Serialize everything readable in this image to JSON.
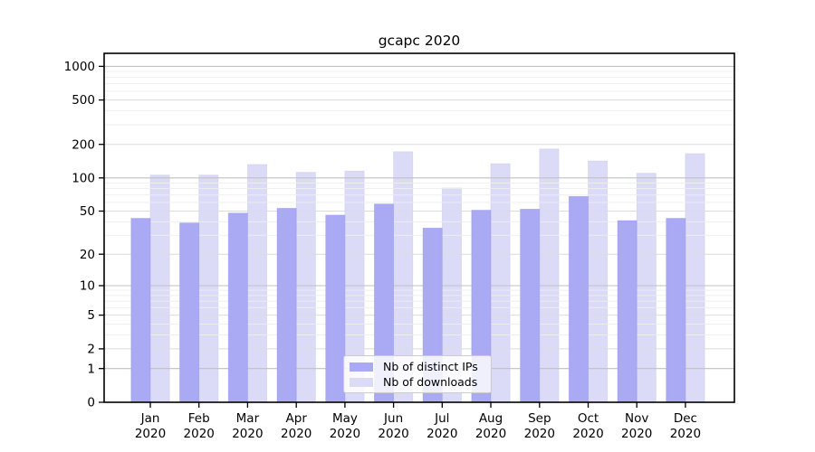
{
  "title": "gcapc 2020",
  "chart_data": {
    "type": "bar",
    "title": "gcapc 2020",
    "categories": [
      "Jan",
      "Feb",
      "Mar",
      "Apr",
      "May",
      "Jun",
      "Jul",
      "Aug",
      "Sep",
      "Oct",
      "Nov",
      "Dec"
    ],
    "category_year": "2020",
    "series": [
      {
        "name": "Nb of distinct IPs",
        "color": "#a9a9f4",
        "values": [
          43,
          39,
          48,
          53,
          46,
          58,
          35,
          51,
          52,
          68,
          41,
          43
        ]
      },
      {
        "name": "Nb of downloads",
        "color": "#dbdbf8",
        "values": [
          106,
          106,
          132,
          112,
          115,
          172,
          81,
          134,
          182,
          142,
          110,
          165
        ]
      }
    ],
    "y_axis": {
      "scale": "log10(1+value)",
      "ticks": [
        0,
        1,
        2,
        5,
        10,
        20,
        50,
        100,
        200,
        500,
        1000
      ],
      "major_gridlines": [
        1,
        10,
        100,
        1000
      ],
      "minor_gridlines": [
        3,
        4,
        6,
        7,
        8,
        9,
        30,
        40,
        60,
        70,
        80,
        90,
        300,
        400,
        600,
        700,
        800,
        900
      ],
      "ymax_display": 1300
    },
    "grid": true,
    "legend_position": "lower-center",
    "colors": {
      "background": "#ffffff",
      "major_grid": "#c0c0c0",
      "tick_grid": "#dcdcdc",
      "minor_grid": "#eeeeee",
      "axis": "#000000"
    }
  }
}
